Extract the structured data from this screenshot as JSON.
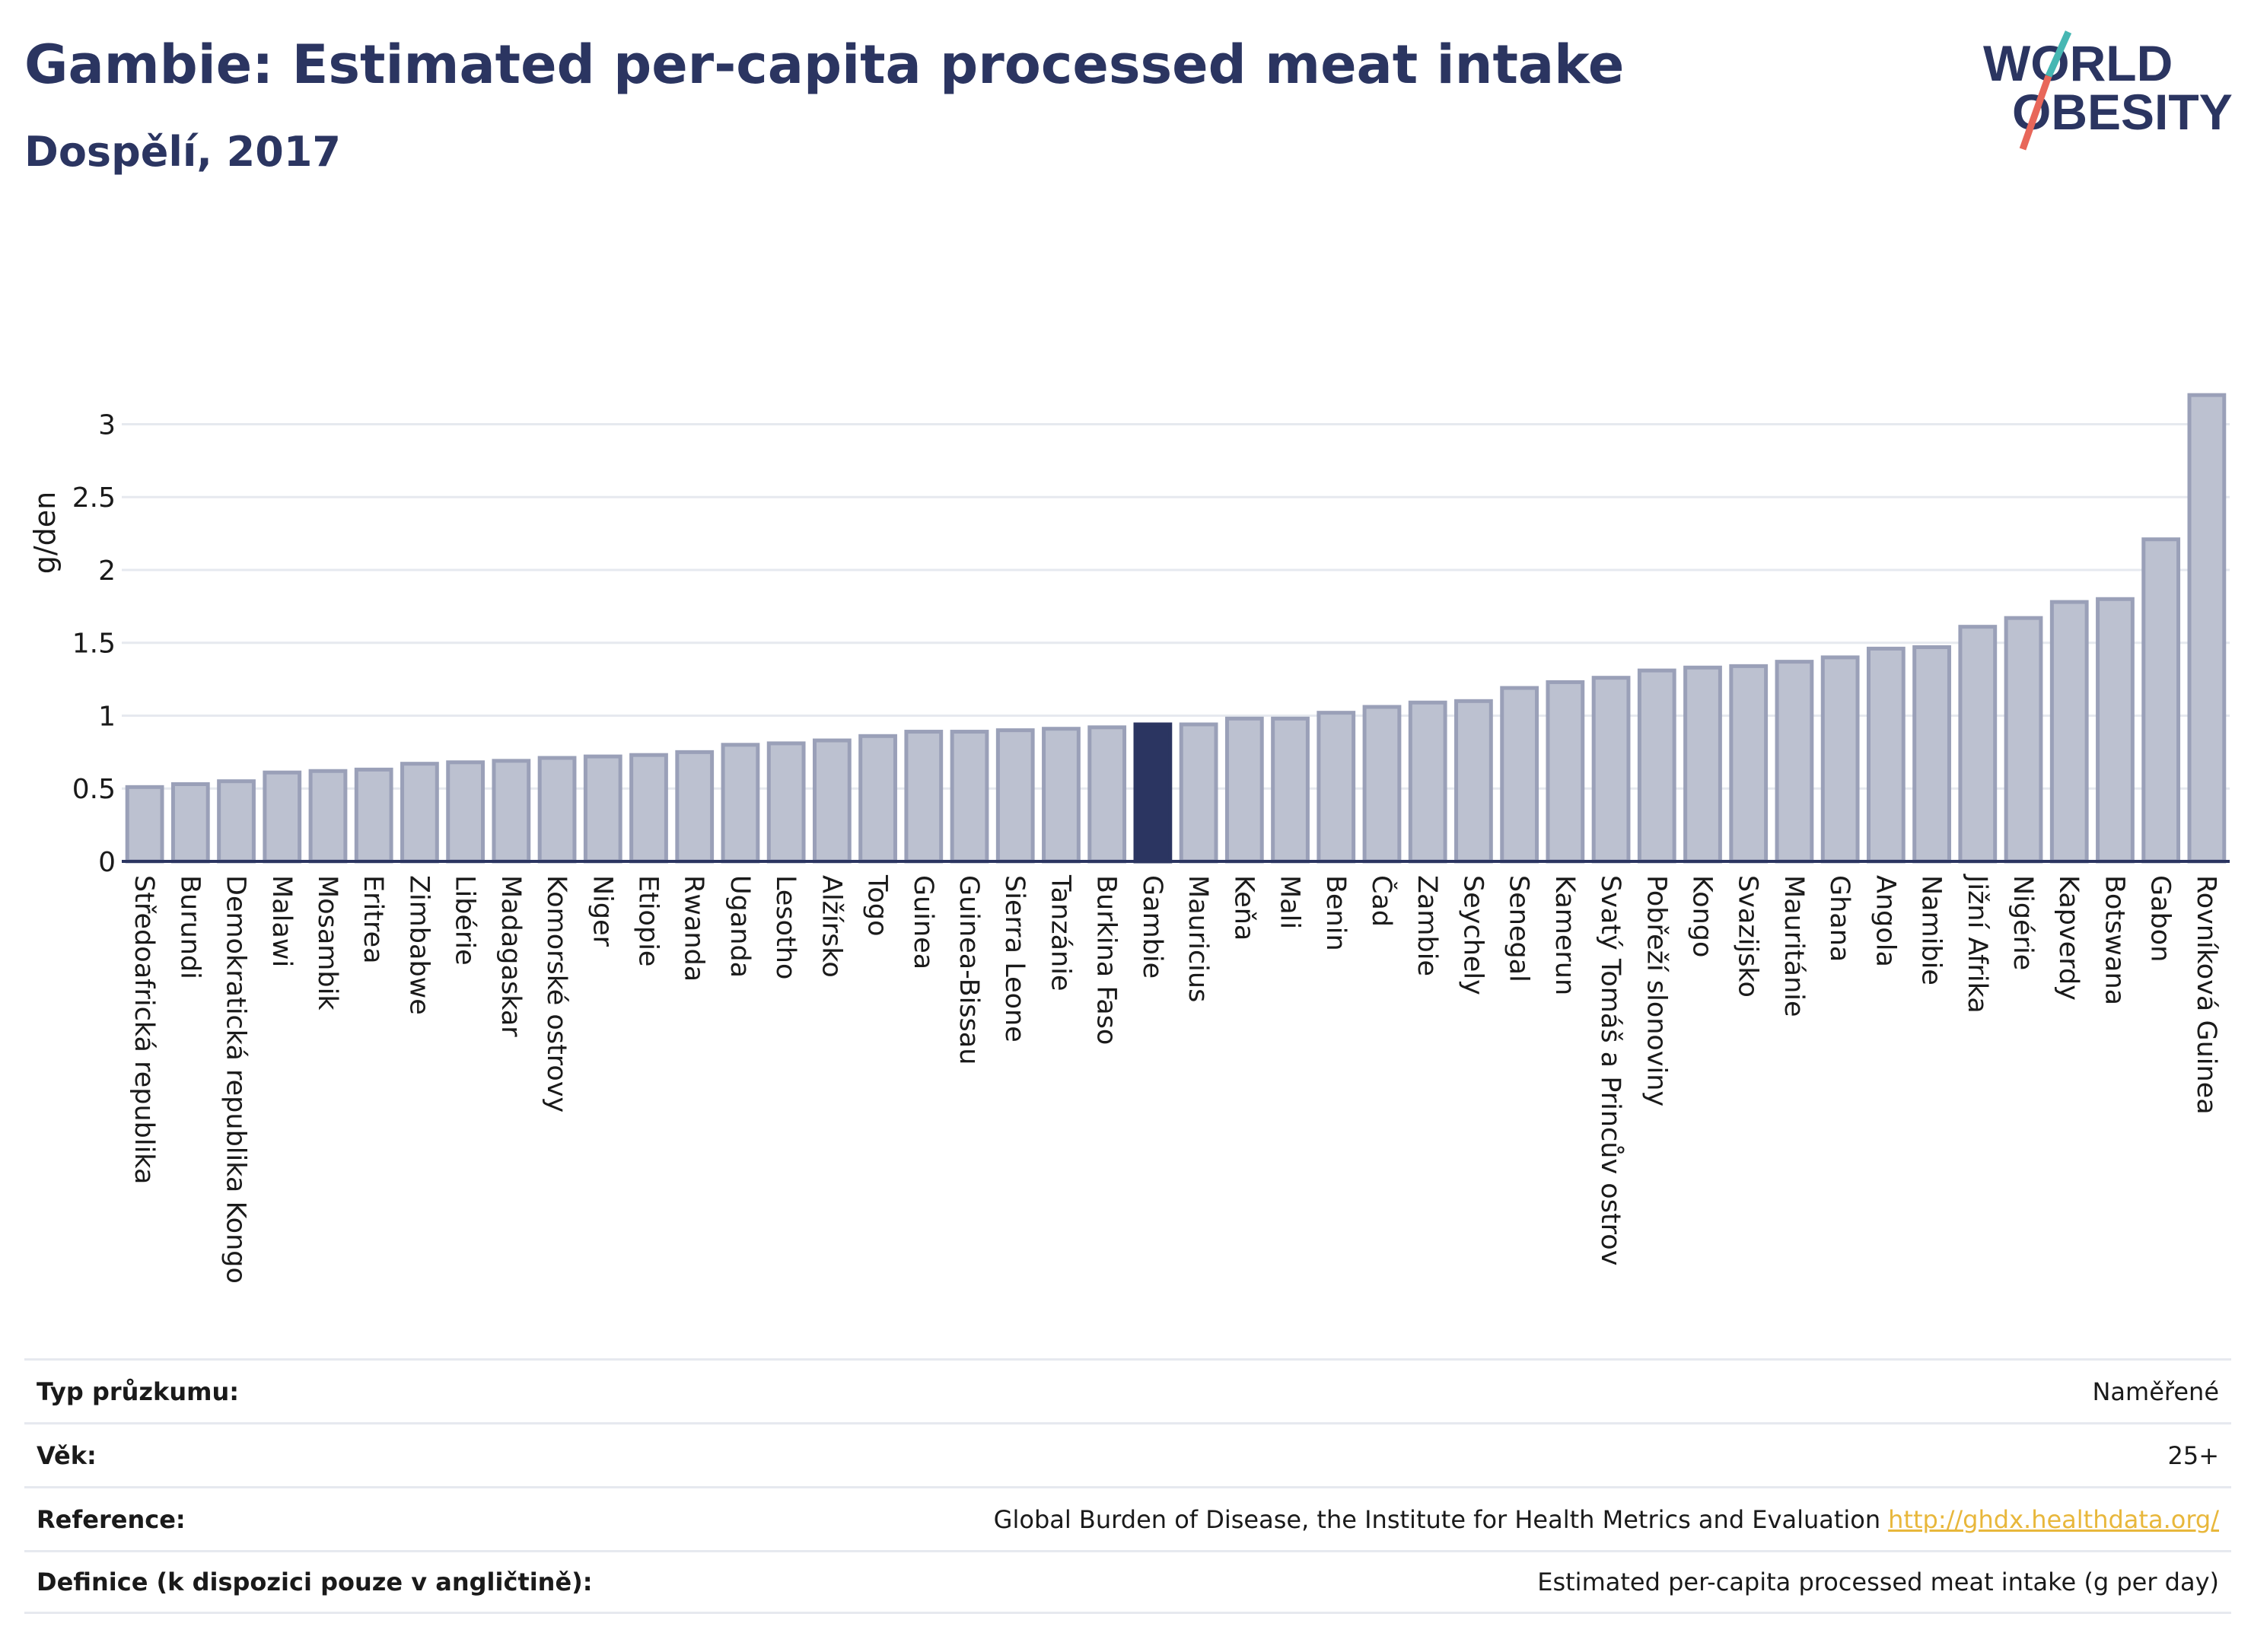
{
  "header": {
    "title": "Gambie: Estimated per-capita processed meat intake",
    "subtitle": "Dospělí, 2017"
  },
  "logo": {
    "line1": "WORLD",
    "line2": "OBESITY"
  },
  "colors": {
    "bar": "#bcc1d0",
    "bar_stroke": "#9aa0b8",
    "highlight": "#2b3561",
    "title": "#2b3561",
    "link": "#e8b73b",
    "logo_teal": "#46b7b3",
    "logo_red": "#e8675a"
  },
  "chart_data": {
    "type": "bar",
    "ylabel": "g/den",
    "ylim": [
      0,
      3.3
    ],
    "yticks": [
      0,
      0.5,
      1,
      1.5,
      2,
      2.5,
      3
    ],
    "highlight": "Gambie",
    "grid": true,
    "categories": [
      "Středoafrická republika",
      "Burundi",
      "Demokratická republika Kongo",
      "Malawi",
      "Mosambik",
      "Eritrea",
      "Zimbabwe",
      "Libérie",
      "Madagaskar",
      "Komorské ostrovy",
      "Niger",
      "Etiopie",
      "Rwanda",
      "Uganda",
      "Lesotho",
      "Alžírsko",
      "Togo",
      "Guinea",
      "Guinea-Bissau",
      "Sierra Leone",
      "Tanzánie",
      "Burkina Faso",
      "Gambie",
      "Mauricius",
      "Keňa",
      "Mali",
      "Benin",
      "Čad",
      "Zambie",
      "Seychely",
      "Senegal",
      "Kamerun",
      "Svatý Tomáš a Princův ostrov",
      "Pobřeží slonoviny",
      "Kongo",
      "Svazijsko",
      "Mauritánie",
      "Ghana",
      "Angola",
      "Namibie",
      "Jižní Afrika",
      "Nigérie",
      "Kapverdy",
      "Botswana",
      "Gabon",
      "Rovníková Guinea"
    ],
    "values": [
      0.51,
      0.53,
      0.55,
      0.61,
      0.62,
      0.63,
      0.67,
      0.68,
      0.69,
      0.71,
      0.72,
      0.73,
      0.75,
      0.8,
      0.81,
      0.83,
      0.86,
      0.89,
      0.89,
      0.9,
      0.91,
      0.92,
      0.94,
      0.94,
      0.98,
      0.98,
      1.02,
      1.06,
      1.09,
      1.1,
      1.19,
      1.23,
      1.26,
      1.31,
      1.33,
      1.34,
      1.37,
      1.4,
      1.46,
      1.47,
      1.61,
      1.67,
      1.78,
      1.8,
      2.21,
      3.2
    ]
  },
  "meta": [
    {
      "label": "Typ průzkumu:",
      "value": "Naměřené"
    },
    {
      "label": "Věk:",
      "value": "25+"
    },
    {
      "label": "Reference:",
      "value": "Global Burden of Disease, the Institute for Health Metrics and Evaluation",
      "link": "http://ghdx.healthdata.org/"
    },
    {
      "label": "Definice (k dispozici pouze v angličtině):",
      "value": "Estimated per-capita processed meat intake (g per day)"
    }
  ]
}
